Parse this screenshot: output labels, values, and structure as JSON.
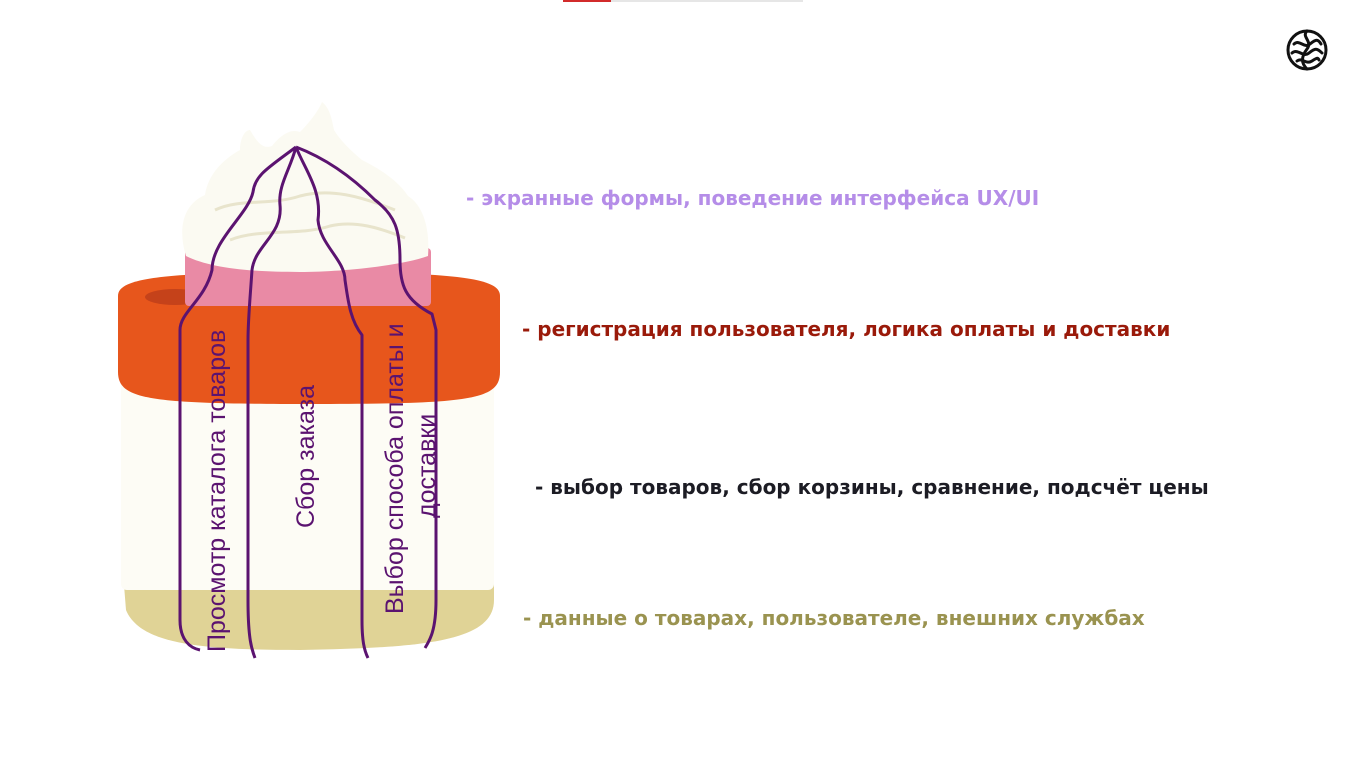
{
  "progress": {
    "fraction": 0.2
  },
  "logo": {
    "icon": "brain-icon"
  },
  "layers": [
    {
      "text": "- экранные формы, поведение интерфейса UX/UI",
      "color": "#b58de8"
    },
    {
      "text": "- регистрация пользователя, логика оплаты и доставки",
      "color": "#9a1a0a"
    },
    {
      "text": "- выбор товаров, сбор корзины, сравнение, подсчёт цены",
      "color": "#1c1c24"
    },
    {
      "text": "- данные о товарах, пользователе, внешних службах",
      "color": "#9a9350"
    }
  ],
  "slices": {
    "catalog": "Просмотр каталога товаров",
    "order": "Сбор заказа",
    "payment_line1": "Выбор способа оплаты и",
    "payment_line2": "доставки"
  },
  "colors": {
    "slice_lines": "#5b1370",
    "cream": "#fbfaf2",
    "pink": "#e98aa5",
    "orange": "#e7561c",
    "white_layer": "#fdfcf5",
    "base": "#e0d396"
  }
}
